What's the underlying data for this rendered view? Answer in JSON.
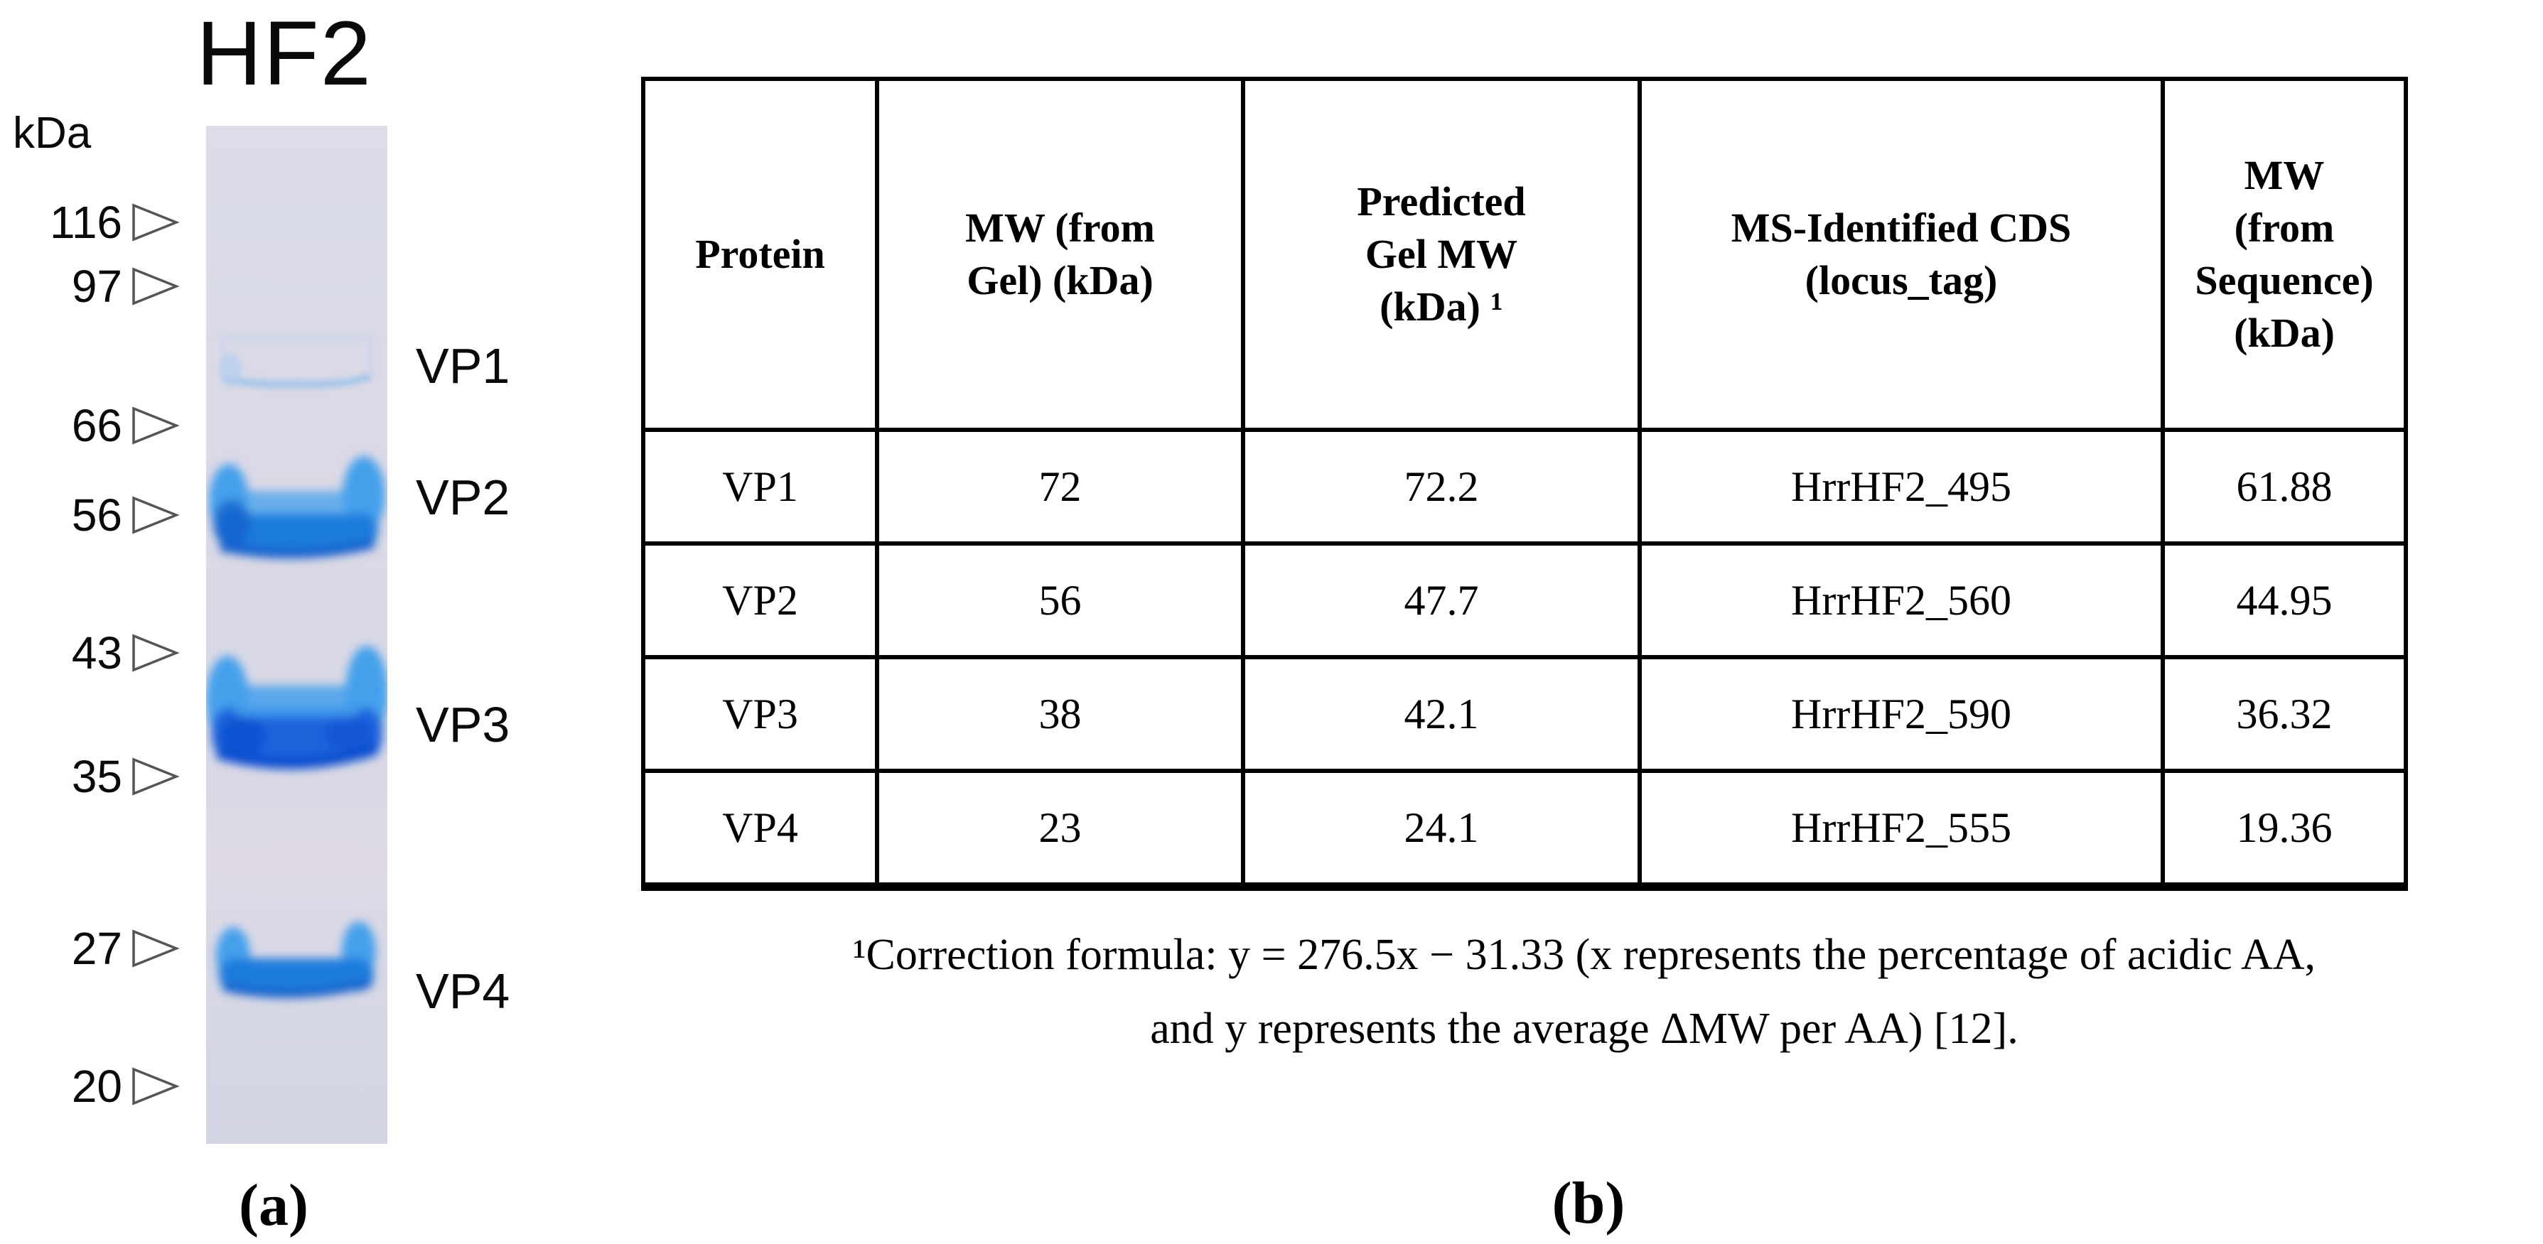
{
  "panel_a": {
    "title": "HF2",
    "unit_label": "kDa",
    "ladder": [
      "116",
      "97",
      "66",
      "56",
      "43",
      "35",
      "27",
      "20"
    ],
    "band_labels": [
      "VP1",
      "VP2",
      "VP3",
      "VP4"
    ],
    "caption": "(a)"
  },
  "panel_b": {
    "table": {
      "headers": [
        "Protein",
        "MW (from\nGel) (kDa)",
        "Predicted\nGel MW\n(kDa) ¹",
        "MS-Identified CDS\n(locus_tag)",
        "MW\n(from\nSequence)\n(kDa)"
      ],
      "rows": [
        [
          "VP1",
          "72",
          "72.2",
          "HrrHF2_495",
          "61.88"
        ],
        [
          "VP2",
          "56",
          "47.7",
          "HrrHF2_560",
          "44.95"
        ],
        [
          "VP3",
          "38",
          "42.1",
          "HrrHF2_590",
          "36.32"
        ],
        [
          "VP4",
          "23",
          "24.1",
          "HrrHF2_555",
          "19.36"
        ]
      ]
    },
    "footnote": {
      "line1": "¹Correction formula: y = 276.5x − 31.33 (x represents the percentage of acidic AA,",
      "line2": "and y represents the average ΔMW per AA) [12]."
    },
    "caption": "(b)"
  },
  "colors": {
    "lane_bg": "#dbdbe8",
    "band_light": "#44a0ec",
    "band_mid": "#1e7cdc",
    "band_deep": "#1360cc",
    "band_vp3_mid": "#1b64dc",
    "band_vp3_deep": "#0f4fd0",
    "band_faint": "#aecdef",
    "band_faint_line": "#9cc3ea",
    "arrow_stroke": "#555555",
    "table_border": "#000000",
    "text": "#0a0a0a"
  }
}
